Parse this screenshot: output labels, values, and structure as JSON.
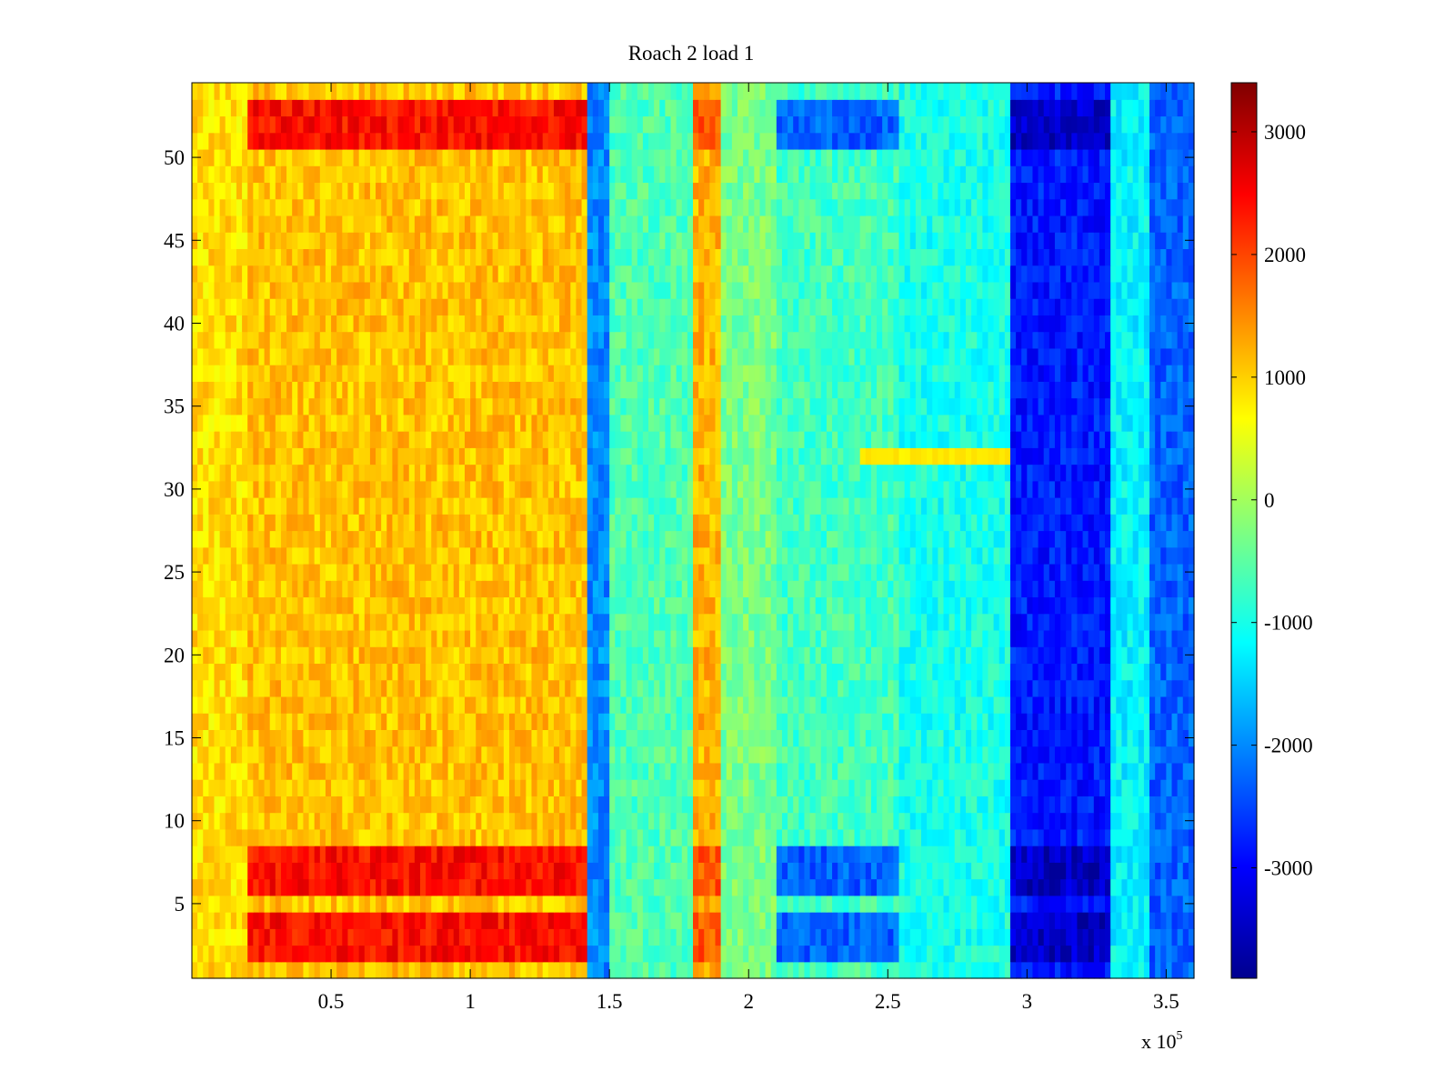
{
  "chart_data": {
    "type": "heatmap",
    "title": "Roach 2 load 1",
    "xlabel": "",
    "ylabel": "",
    "x_range": [
      0,
      360000
    ],
    "y_range": [
      0.5,
      54.5
    ],
    "x_ticks": [
      50000,
      100000,
      150000,
      200000,
      250000,
      300000,
      350000
    ],
    "x_tick_labels": [
      "0.5",
      "1",
      "1.5",
      "2",
      "2.5",
      "3",
      "3.5"
    ],
    "x_multiplier_prefix": "x 10",
    "x_multiplier_exponent": "5",
    "y_ticks": [
      5,
      10,
      15,
      20,
      25,
      30,
      35,
      40,
      45,
      50
    ],
    "y_tick_labels": [
      "5",
      "10",
      "15",
      "20",
      "25",
      "30",
      "35",
      "40",
      "45",
      "50"
    ],
    "rows": 54,
    "colormap": "jet",
    "color_range": [
      -3900,
      3400
    ],
    "colorbar_ticks": [
      3000,
      2000,
      1000,
      0,
      -1000,
      -2000,
      -3000
    ],
    "colorbar_tick_labels": [
      "3000",
      "2000",
      "1000",
      "0",
      "-1000",
      "-2000",
      "-3000"
    ],
    "grid": false,
    "column_profile": {
      "description_units": "approximate mean value per x segment (x in data units, value in color units)",
      "segments": [
        {
          "x": [
            0,
            20000
          ],
          "value": 900
        },
        {
          "x": [
            20000,
            142000
          ],
          "value": 1100
        },
        {
          "x": [
            142000,
            150000
          ],
          "value": -2000
        },
        {
          "x": [
            150000,
            180000
          ],
          "value": -600
        },
        {
          "x": [
            180000,
            190000
          ],
          "value": 1200
        },
        {
          "x": [
            190000,
            210000
          ],
          "value": -300
        },
        {
          "x": [
            210000,
            255000
          ],
          "value": -700
        },
        {
          "x": [
            255000,
            295000
          ],
          "value": -1000
        },
        {
          "x": [
            295000,
            330000
          ],
          "value": -2800
        },
        {
          "x": [
            330000,
            345000
          ],
          "value": -1200
        },
        {
          "x": [
            345000,
            360000
          ],
          "value": -2300
        }
      ]
    },
    "hot_rows": [
      2,
      3,
      4,
      6,
      7,
      8,
      51,
      52,
      53
    ],
    "anomaly_band": {
      "row": 32,
      "x": [
        240000,
        295000
      ],
      "value": 800
    }
  }
}
